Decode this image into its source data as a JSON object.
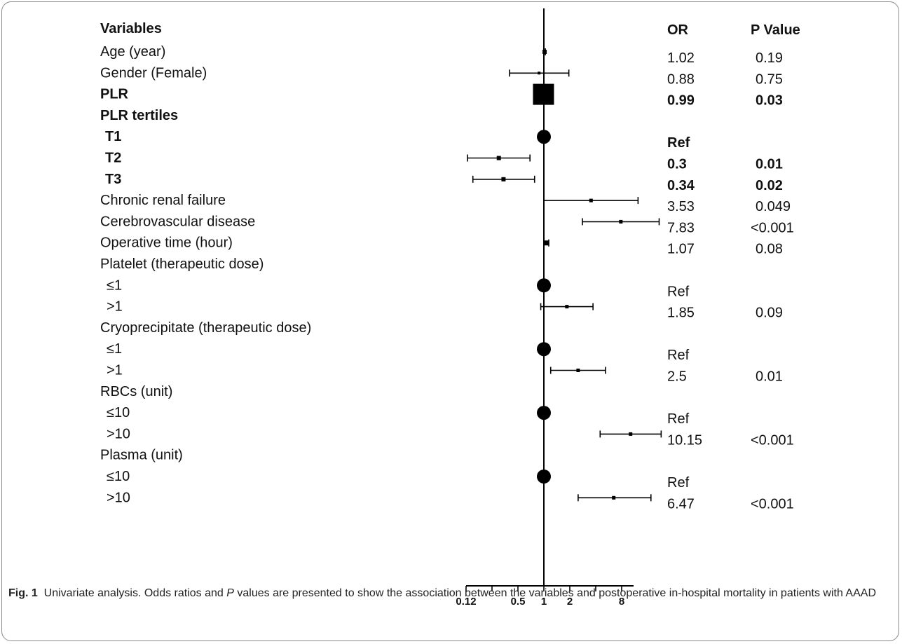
{
  "chart_data": {
    "type": "forest",
    "x_scale": "log2",
    "xlim": [
      0.125,
      11
    ],
    "reference_line": 1,
    "x_ticks": [
      {
        "value": 0.125,
        "label": "0.12"
      },
      {
        "value": 0.25,
        "label": ""
      },
      {
        "value": 0.5,
        "label": "0.5"
      },
      {
        "value": 1,
        "label": "1"
      },
      {
        "value": 2,
        "label": "2"
      },
      {
        "value": 4,
        "label": ""
      },
      {
        "value": 8,
        "label": "8"
      }
    ],
    "headers": {
      "variable": "Variables",
      "or": "OR",
      "p": "P Value"
    },
    "rows": [
      {
        "label": "Age (year)",
        "indent": false,
        "bold": false,
        "or_text": "1.02",
        "p_text": "0.19",
        "or": 1.02,
        "lo": 1.0,
        "hi": 1.04,
        "marker": "square",
        "size": 6
      },
      {
        "label": "Gender (Female)",
        "indent": false,
        "bold": false,
        "or_text": "0.88",
        "p_text": "0.75",
        "or": 0.88,
        "lo": 0.4,
        "hi": 1.95,
        "marker": "square",
        "size": 4
      },
      {
        "label": "PLR",
        "indent": false,
        "bold": true,
        "or_text": "0.99",
        "p_text": "0.03",
        "or": 0.99,
        "lo": 0.98,
        "hi": 1.0,
        "marker": "square",
        "size": 30
      },
      {
        "label": "PLR tertiles",
        "indent": false,
        "bold": true,
        "or_text": "",
        "p_text": "",
        "marker": "none"
      },
      {
        "label": "T1",
        "indent": true,
        "bold": true,
        "or_text": "Ref",
        "p_text": "",
        "or": 1,
        "marker": "circle"
      },
      {
        "label": "T2",
        "indent": true,
        "bold": true,
        "or_text": "0.3",
        "p_text": "0.01",
        "or": 0.3,
        "lo": 0.13,
        "hi": 0.69,
        "marker": "square",
        "size": 6
      },
      {
        "label": "T3",
        "indent": true,
        "bold": true,
        "or_text": "0.34",
        "p_text": "0.02",
        "or": 0.34,
        "lo": 0.15,
        "hi": 0.78,
        "marker": "square",
        "size": 6
      },
      {
        "label": "Chronic renal failure",
        "indent": false,
        "bold": false,
        "or_text": "3.53",
        "p_text": "0.049",
        "or": 3.53,
        "lo": 1.0,
        "hi": 12.4,
        "marker": "square",
        "size": 5
      },
      {
        "label": "Cerebrovascular disease",
        "indent": false,
        "bold": false,
        "or_text": "7.83",
        "p_text": "<0.001",
        "or": 7.83,
        "lo": 2.8,
        "hi": 21.8,
        "marker": "square",
        "size": 5
      },
      {
        "label": "Operative time (hour)",
        "indent": false,
        "bold": false,
        "or_text": "1.07",
        "p_text": "0.08",
        "or": 1.07,
        "lo": 1.0,
        "hi": 1.14,
        "marker": "square",
        "size": 7
      },
      {
        "label": "Platelet (therapeutic dose)",
        "indent": false,
        "bold": false,
        "or_text": "",
        "p_text": "",
        "marker": "none"
      },
      {
        "label": "≤1",
        "indent": true,
        "bold": false,
        "or_text": "Ref",
        "p_text": "",
        "or": 1,
        "marker": "circle"
      },
      {
        "label": ">1",
        "indent": true,
        "bold": false,
        "or_text": "1.85",
        "p_text": "0.09",
        "or": 1.85,
        "lo": 0.92,
        "hi": 3.72,
        "marker": "square",
        "size": 5
      },
      {
        "label": "Cryoprecipitate (therapeutic dose)",
        "indent": false,
        "bold": false,
        "or_text": "",
        "p_text": "",
        "marker": "none"
      },
      {
        "label": "≤1",
        "indent": true,
        "bold": false,
        "or_text": "Ref",
        "p_text": "",
        "or": 1,
        "marker": "circle"
      },
      {
        "label": ">1",
        "indent": true,
        "bold": false,
        "or_text": "2.5",
        "p_text": "0.01",
        "or": 2.5,
        "lo": 1.2,
        "hi": 5.2,
        "marker": "square",
        "size": 5
      },
      {
        "label": "RBCs (unit)",
        "indent": false,
        "bold": false,
        "or_text": "",
        "p_text": "",
        "marker": "none"
      },
      {
        "label": "≤10",
        "indent": true,
        "bold": false,
        "or_text": "Ref",
        "p_text": "",
        "or": 1,
        "marker": "circle"
      },
      {
        "label": ">10",
        "indent": true,
        "bold": false,
        "or_text": "10.15",
        "p_text": "<0.001",
        "or": 10.15,
        "lo": 4.5,
        "hi": 23.0,
        "marker": "square",
        "size": 5
      },
      {
        "label": "Plasma (unit)",
        "indent": false,
        "bold": false,
        "or_text": "",
        "p_text": "",
        "marker": "none"
      },
      {
        "label": "≤10",
        "indent": true,
        "bold": false,
        "or_text": "Ref",
        "p_text": "",
        "or": 1,
        "marker": "circle"
      },
      {
        "label": ">10",
        "indent": true,
        "bold": false,
        "or_text": "6.47",
        "p_text": "<0.001",
        "or": 6.47,
        "lo": 2.5,
        "hi": 17.5,
        "marker": "square",
        "size": 5
      }
    ]
  },
  "caption": {
    "figure_label": "Fig. 1",
    "text_before_p": "Univariate analysis. Odds ratios and ",
    "p_letter": "P",
    "text_after_p": " values are presented to show the association between the variables and postoperative in-hospital mortality in patients with AAAD"
  }
}
